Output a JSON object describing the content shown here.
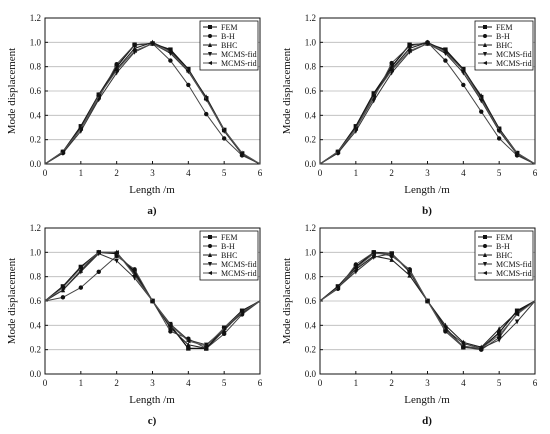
{
  "chart_data": [
    {
      "type": "line",
      "panel_label": "a)",
      "xlabel": "Length /m",
      "ylabel": "Mode displacement",
      "xlim": [
        0,
        6
      ],
      "ylim": [
        0,
        1.2
      ],
      "xticks": [
        "0",
        "1",
        "2",
        "3",
        "4",
        "5",
        "6"
      ],
      "yticks": [
        "0.0",
        "0.2",
        "0.4",
        "0.6",
        "0.8",
        "1.0",
        "1.2"
      ],
      "grid": "horizontal",
      "legend_position": "top-right",
      "x": [
        0,
        0.5,
        1,
        1.5,
        2,
        2.5,
        3,
        3.5,
        4,
        4.5,
        5,
        5.5,
        6
      ],
      "series": [
        {
          "name": "FEM",
          "marker": "square",
          "values": [
            0,
            0.1,
            0.31,
            0.57,
            0.8,
            0.98,
            0.99,
            0.94,
            0.78,
            0.54,
            0.28,
            0.08,
            0
          ]
        },
        {
          "name": "B-H",
          "marker": "circle",
          "values": [
            0,
            0.09,
            0.29,
            0.54,
            0.82,
            0.98,
            0.99,
            0.85,
            0.65,
            0.41,
            0.21,
            0.07,
            0
          ]
        },
        {
          "name": "BHC",
          "marker": "triangle-up",
          "values": [
            0,
            0.1,
            0.3,
            0.57,
            0.78,
            0.95,
            1.0,
            0.93,
            0.77,
            0.55,
            0.28,
            0.09,
            0
          ]
        },
        {
          "name": "MCMS-fid",
          "marker": "triangle-down",
          "values": [
            0,
            0.09,
            0.27,
            0.53,
            0.75,
            0.92,
            0.99,
            0.91,
            0.76,
            0.53,
            0.27,
            0.08,
            0
          ]
        },
        {
          "name": "MCMS-rid",
          "marker": "triangle-left",
          "values": [
            0,
            0.1,
            0.29,
            0.56,
            0.77,
            0.93,
            0.99,
            0.92,
            0.77,
            0.53,
            0.28,
            0.09,
            0
          ]
        }
      ]
    },
    {
      "type": "line",
      "panel_label": "b)",
      "xlabel": "Length /m",
      "ylabel": "Mode displacement",
      "xlim": [
        0,
        6
      ],
      "ylim": [
        0,
        1.2
      ],
      "xticks": [
        "0",
        "1",
        "2",
        "3",
        "4",
        "5",
        "6"
      ],
      "yticks": [
        "0.0",
        "0.2",
        "0.4",
        "0.6",
        "0.8",
        "1.0",
        "1.2"
      ],
      "grid": "horizontal",
      "legend_position": "top-right",
      "x": [
        0,
        0.5,
        1,
        1.5,
        2,
        2.5,
        3,
        3.5,
        4,
        4.5,
        5,
        5.5,
        6
      ],
      "series": [
        {
          "name": "FEM",
          "marker": "square",
          "values": [
            0,
            0.1,
            0.31,
            0.58,
            0.8,
            0.98,
            0.99,
            0.94,
            0.78,
            0.55,
            0.29,
            0.09,
            0
          ]
        },
        {
          "name": "B-H",
          "marker": "circle",
          "values": [
            0,
            0.09,
            0.29,
            0.54,
            0.83,
            0.97,
            1.0,
            0.85,
            0.65,
            0.43,
            0.21,
            0.07,
            0
          ]
        },
        {
          "name": "BHC",
          "marker": "triangle-up",
          "values": [
            0,
            0.1,
            0.3,
            0.57,
            0.78,
            0.95,
            1.0,
            0.93,
            0.77,
            0.56,
            0.28,
            0.09,
            0
          ]
        },
        {
          "name": "MCMS-fid",
          "marker": "triangle-down",
          "values": [
            0,
            0.09,
            0.27,
            0.52,
            0.75,
            0.92,
            0.99,
            0.91,
            0.75,
            0.52,
            0.27,
            0.08,
            0
          ]
        },
        {
          "name": "MCMS-rid",
          "marker": "triangle-left",
          "values": [
            0,
            0.1,
            0.29,
            0.56,
            0.77,
            0.93,
            0.99,
            0.92,
            0.77,
            0.53,
            0.28,
            0.09,
            0
          ]
        }
      ]
    },
    {
      "type": "line",
      "panel_label": "c)",
      "xlabel": "Length /m",
      "ylabel": "Mode displacement",
      "xlim": [
        0,
        6
      ],
      "ylim": [
        0,
        1.2
      ],
      "xticks": [
        "0",
        "1",
        "2",
        "3",
        "4",
        "5",
        "6"
      ],
      "yticks": [
        "0.0",
        "0.2",
        "0.4",
        "0.6",
        "0.8",
        "1.0",
        "1.2"
      ],
      "grid": "horizontal",
      "legend_position": "top-right",
      "x": [
        0,
        0.5,
        1,
        1.5,
        2,
        2.5,
        3,
        3.5,
        4,
        4.5,
        5,
        5.5,
        6
      ],
      "series": [
        {
          "name": "FEM",
          "marker": "square",
          "values": [
            0.6,
            0.72,
            0.88,
            1.0,
            0.99,
            0.84,
            0.6,
            0.4,
            0.21,
            0.21,
            0.38,
            0.52,
            0.6
          ]
        },
        {
          "name": "B-H",
          "marker": "circle",
          "values": [
            0.6,
            0.63,
            0.71,
            0.84,
            0.97,
            0.86,
            0.6,
            0.35,
            0.29,
            0.21,
            0.33,
            0.49,
            0.6
          ]
        },
        {
          "name": "BHC",
          "marker": "triangle-up",
          "values": [
            0.6,
            0.69,
            0.85,
            1.0,
            1.0,
            0.82,
            0.6,
            0.38,
            0.24,
            0.21,
            0.36,
            0.51,
            0.6
          ]
        },
        {
          "name": "MCMS-fid",
          "marker": "triangle-down",
          "values": [
            0.6,
            0.69,
            0.84,
            0.99,
            0.93,
            0.79,
            0.6,
            0.41,
            0.28,
            0.24,
            0.37,
            0.5,
            0.6
          ]
        },
        {
          "name": "MCMS-rid",
          "marker": "triangle-left",
          "values": [
            0.6,
            0.71,
            0.87,
            1.0,
            1.0,
            0.81,
            0.6,
            0.4,
            0.27,
            0.23,
            0.38,
            0.51,
            0.6
          ]
        }
      ]
    },
    {
      "type": "line",
      "panel_label": "d)",
      "xlabel": "Length /m",
      "ylabel": "Mode displacement",
      "xlim": [
        0,
        6
      ],
      "ylim": [
        0,
        1.2
      ],
      "xticks": [
        "0",
        "1",
        "2",
        "3",
        "4",
        "5",
        "6"
      ],
      "yticks": [
        "0.0",
        "0.2",
        "0.4",
        "0.6",
        "0.8",
        "1.0",
        "1.2"
      ],
      "grid": "horizontal",
      "legend_position": "top-right",
      "x": [
        0,
        0.5,
        1,
        1.5,
        2,
        2.5,
        3,
        3.5,
        4,
        4.5,
        5,
        5.5,
        6
      ],
      "series": [
        {
          "name": "FEM",
          "marker": "square",
          "values": [
            0.6,
            0.72,
            0.88,
            1.0,
            0.99,
            0.84,
            0.6,
            0.38,
            0.22,
            0.21,
            0.34,
            0.52,
            0.6
          ]
        },
        {
          "name": "B-H",
          "marker": "circle",
          "values": [
            0.6,
            0.7,
            0.9,
            1.0,
            0.97,
            0.86,
            0.6,
            0.35,
            0.22,
            0.2,
            0.3,
            0.5,
            0.6
          ]
        },
        {
          "name": "BHC",
          "marker": "triangle-up",
          "values": [
            0.6,
            0.71,
            0.86,
            0.97,
            0.94,
            0.81,
            0.6,
            0.4,
            0.26,
            0.22,
            0.37,
            0.51,
            0.6
          ]
        },
        {
          "name": "MCMS-fid",
          "marker": "triangle-down",
          "values": [
            0.6,
            0.71,
            0.84,
            0.96,
            0.99,
            0.85,
            0.6,
            0.37,
            0.25,
            0.21,
            0.28,
            0.43,
            0.6
          ]
        },
        {
          "name": "MCMS-rid",
          "marker": "triangle-left",
          "values": [
            0.6,
            0.71,
            0.87,
            0.99,
            0.99,
            0.85,
            0.6,
            0.36,
            0.23,
            0.21,
            0.32,
            0.49,
            0.6
          ]
        }
      ]
    }
  ]
}
